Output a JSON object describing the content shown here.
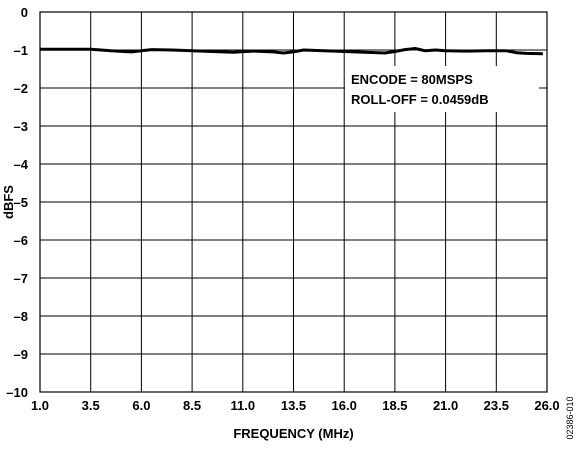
{
  "chart_data": {
    "type": "line",
    "xlabel": "FREQUENCY (MHz)",
    "ylabel": "dBFS",
    "xlim": [
      1.0,
      26.0
    ],
    "ylim": [
      -10,
      0
    ],
    "x_ticks": [
      "1.0",
      "3.5",
      "6.0",
      "8.5",
      "11.0",
      "13.5",
      "16.0",
      "18.5",
      "21.0",
      "23.5",
      "26.0"
    ],
    "y_ticks": [
      "0",
      "–1",
      "–2",
      "–3",
      "–4",
      "–5",
      "–6",
      "–7",
      "–8",
      "–9",
      "–10"
    ],
    "grid": true,
    "annotations": [
      "ENCODE = 80MSPS",
      "ROLL-OFF = 0.0459dB"
    ],
    "series": [
      {
        "x": [
          1.0,
          2.0,
          3.5,
          4.5,
          5.5,
          6.0,
          6.5,
          7.5,
          8.5,
          9.5,
          10.5,
          11.5,
          12.5,
          13.0,
          13.5,
          14.0,
          15.0,
          16.0,
          17.0,
          18.0,
          18.5,
          19.0,
          19.5,
          20.0,
          20.5,
          21.0,
          22.0,
          23.0,
          24.0,
          24.5,
          25.0,
          25.8
        ],
        "values": [
          -0.98,
          -0.98,
          -0.98,
          -1.02,
          -1.05,
          -1.02,
          -0.99,
          -1.0,
          -1.02,
          -1.04,
          -1.06,
          -1.03,
          -1.05,
          -1.08,
          -1.05,
          -1.0,
          -1.02,
          -1.04,
          -1.06,
          -1.08,
          -1.04,
          -0.99,
          -0.96,
          -1.02,
          -1.0,
          -1.02,
          -1.03,
          -1.02,
          -1.02,
          -1.07,
          -1.09,
          -1.1
        ]
      }
    ]
  },
  "figure_id": "02386-010",
  "colors": {
    "line": "#000000",
    "grid": "#000000",
    "background": "#ffffff"
  }
}
